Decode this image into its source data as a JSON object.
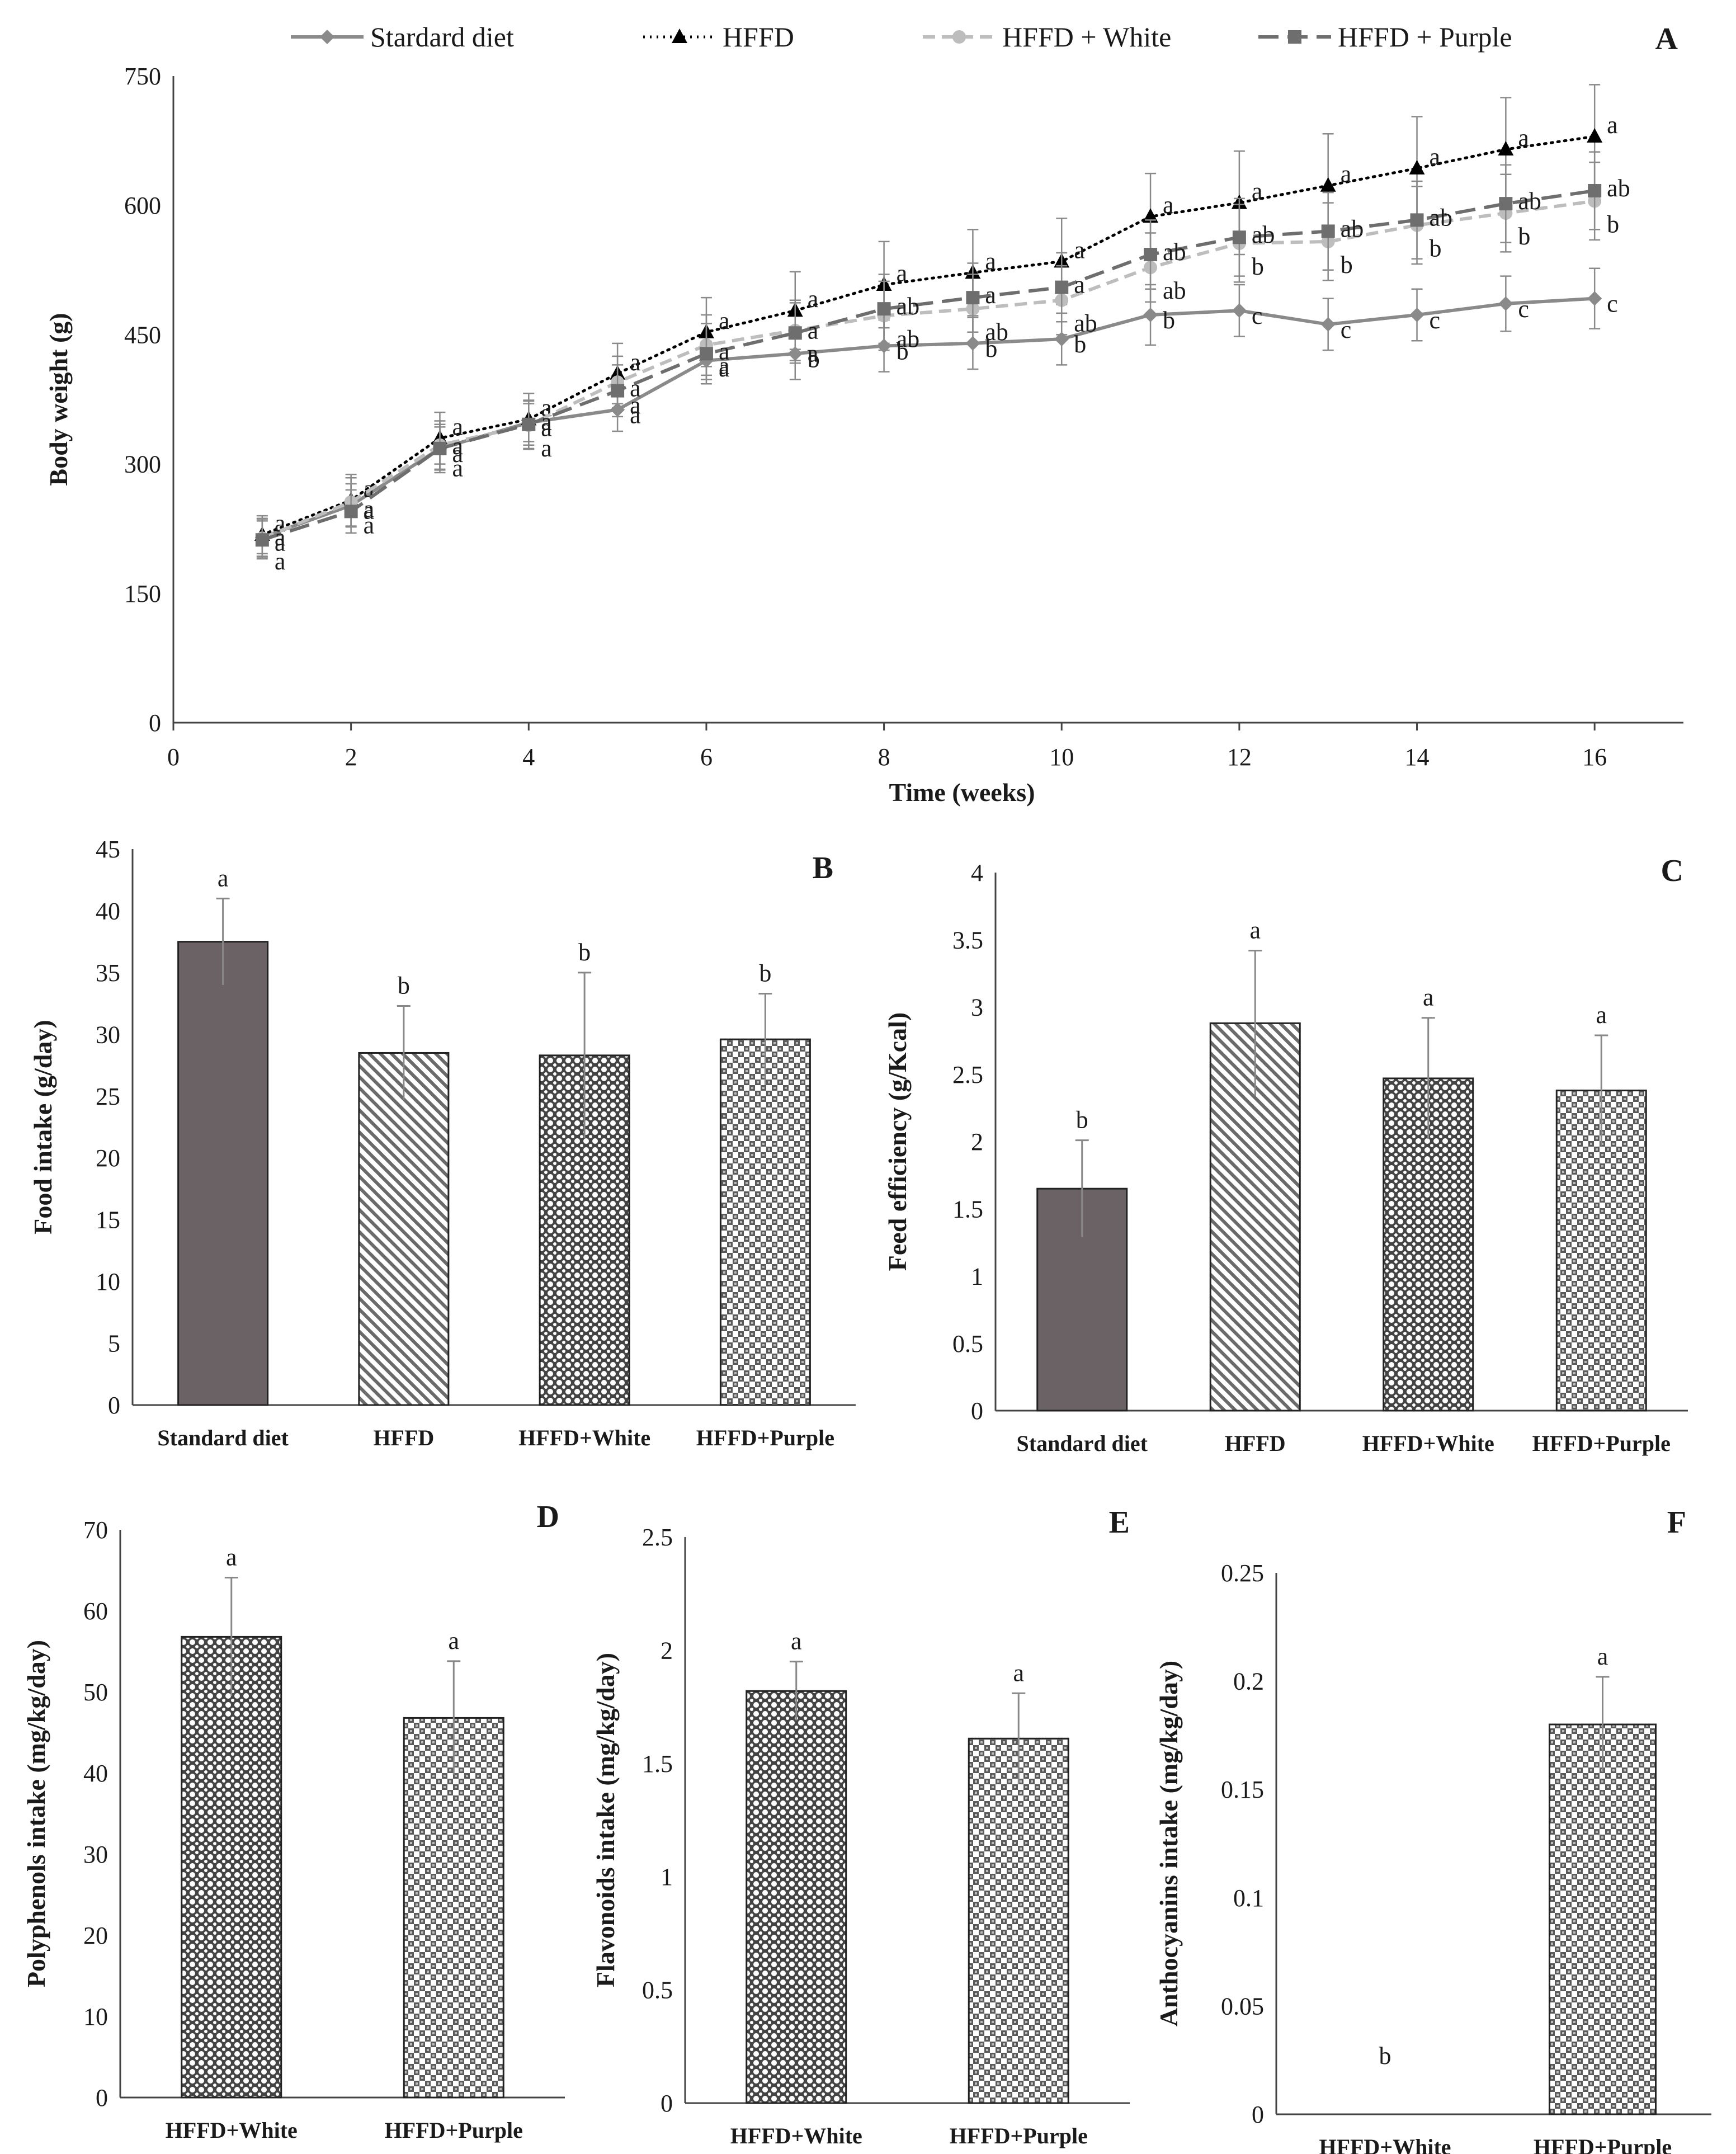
{
  "chart_data": [
    {
      "panel": "A",
      "type": "line",
      "xlabel": "Time (weeks)",
      "ylabel": "Body weight  (g)",
      "xlim": [
        0,
        17
      ],
      "ylim": [
        0,
        750
      ],
      "xticks": [
        0,
        2,
        4,
        6,
        8,
        10,
        12,
        14,
        16
      ],
      "yticks": [
        0,
        150,
        300,
        450,
        600,
        750
      ],
      "x": [
        1,
        2,
        3,
        4,
        5,
        6,
        7,
        8,
        9,
        10,
        11,
        12,
        13,
        14,
        15,
        16
      ],
      "legend_position": "top",
      "series": [
        {
          "name": "Stardard diet",
          "color": "#8a8a8a",
          "style": "solid",
          "marker": "diamond",
          "values": [
            215,
            252,
            318,
            348,
            363,
            420,
            428,
            437,
            440,
            445,
            473,
            478,
            462,
            473,
            486,
            492
          ],
          "errors": [
            22,
            25,
            25,
            22,
            25,
            22,
            30,
            30,
            30,
            30,
            35,
            30,
            30,
            30,
            32,
            35
          ],
          "labels": [
            "a",
            "a",
            "a",
            "a",
            "a",
            "a",
            "b",
            "b",
            "b",
            "b",
            "b",
            "c",
            "c",
            "c",
            "c",
            "c"
          ]
        },
        {
          "name": "HFFD",
          "color": "#000000",
          "style": "dotted",
          "marker": "triangle",
          "values": [
            218,
            258,
            330,
            352,
            405,
            453,
            478,
            508,
            522,
            535,
            587,
            603,
            623,
            643,
            665,
            680
          ],
          "errors": [
            22,
            30,
            30,
            30,
            35,
            40,
            45,
            50,
            50,
            50,
            50,
            60,
            60,
            60,
            60,
            60
          ],
          "labels": [
            "a",
            "a",
            "a",
            "a",
            "a",
            "a",
            "a",
            "a",
            "a",
            "a",
            "a",
            "a",
            "a",
            "a",
            "a",
            "a"
          ]
        },
        {
          "name": "HFFD + White",
          "color": "#bdbdbd",
          "style": "dashed",
          "marker": "circle",
          "values": [
            214,
            256,
            322,
            345,
            395,
            438,
            455,
            472,
            480,
            490,
            528,
            556,
            558,
            577,
            591,
            605
          ],
          "errors": [
            22,
            28,
            28,
            28,
            30,
            35,
            35,
            40,
            40,
            40,
            40,
            45,
            45,
            45,
            45,
            45
          ],
          "labels": [
            "a",
            "a",
            "a",
            "a",
            "a",
            "a",
            "a",
            "ab",
            "ab",
            "ab",
            "ab",
            "b",
            "b",
            "b",
            "b",
            "b"
          ]
        },
        {
          "name": "HFFD + Purple",
          "color": "#6e6e6e",
          "style": "longdash",
          "marker": "square",
          "values": [
            212,
            245,
            318,
            346,
            385,
            428,
            452,
            480,
            493,
            505,
            543,
            563,
            570,
            583,
            602,
            617
          ],
          "errors": [
            22,
            25,
            28,
            28,
            30,
            35,
            35,
            40,
            40,
            40,
            40,
            45,
            45,
            45,
            45,
            45
          ],
          "labels": [
            "a",
            "a",
            "a",
            "a",
            "a",
            "a",
            "a",
            "ab",
            "a",
            "a",
            "ab",
            "ab",
            "ab",
            "ab",
            "ab",
            "ab"
          ]
        }
      ]
    },
    {
      "panel": "B",
      "type": "bar",
      "ylabel": "Food intake (g/day)",
      "ylim": [
        0,
        45
      ],
      "yticks": [
        0,
        5,
        10,
        15,
        20,
        25,
        30,
        35,
        40,
        45
      ],
      "categories": [
        "Standard  diet",
        "HFFD",
        "HFFD+White",
        "HFFD+Purple"
      ],
      "values": [
        37.5,
        28.5,
        28.3,
        29.6
      ],
      "errors": [
        3.5,
        3.8,
        6.7,
        3.7
      ],
      "labels": [
        "a",
        "b",
        "b",
        "b"
      ],
      "fills": [
        "solid",
        "diag",
        "dots",
        "check"
      ]
    },
    {
      "panel": "C",
      "type": "bar",
      "ylabel": "Feed efficiency (g/Kcal)",
      "ylim": [
        0,
        4
      ],
      "yticks": [
        0,
        0.5,
        1,
        1.5,
        2,
        2.5,
        3,
        3.5,
        4
      ],
      "categories": [
        "Standard  diet",
        "HFFD",
        "HFFD+White",
        "HFFD+Purple"
      ],
      "values": [
        1.65,
        2.88,
        2.47,
        2.38
      ],
      "errors": [
        0.36,
        0.54,
        0.45,
        0.41
      ],
      "labels": [
        "b",
        "a",
        "a",
        "a"
      ],
      "fills": [
        "solid",
        "diag",
        "dots",
        "check"
      ]
    },
    {
      "panel": "D",
      "type": "bar",
      "ylabel": "Polyphenols intake (mg/kg/day)",
      "ylim": [
        0,
        70
      ],
      "yticks": [
        0,
        10,
        20,
        30,
        40,
        50,
        60,
        70
      ],
      "categories": [
        "HFFD+White",
        "HFFD+Purple"
      ],
      "values": [
        56.8,
        46.8
      ],
      "errors": [
        7.3,
        7.0
      ],
      "labels": [
        "a",
        "a"
      ],
      "fills": [
        "dots",
        "check"
      ]
    },
    {
      "panel": "E",
      "type": "bar",
      "ylabel": "Flavonoids intake (mg/kg/day)",
      "ylim": [
        0,
        2.5
      ],
      "yticks": [
        0,
        0.5,
        1,
        1.5,
        2,
        2.5
      ],
      "categories": [
        "HFFD+White",
        "HFFD+Purple"
      ],
      "values": [
        1.82,
        1.61
      ],
      "errors": [
        0.13,
        0.2
      ],
      "labels": [
        "a",
        "a"
      ],
      "fills": [
        "dots",
        "check"
      ]
    },
    {
      "panel": "F",
      "type": "bar",
      "ylabel": "Anthocyanins intake (mg/kg/day)",
      "ylim": [
        0,
        0.25
      ],
      "yticks": [
        0,
        0.05,
        0.1,
        0.15,
        0.2,
        0.25
      ],
      "categories": [
        "HFFD+White",
        "HFFD+Purple"
      ],
      "values": [
        0,
        0.18
      ],
      "errors": [
        0,
        0.022
      ],
      "labels": [
        "b",
        "a"
      ],
      "fills": [
        "dots",
        "check"
      ]
    }
  ]
}
